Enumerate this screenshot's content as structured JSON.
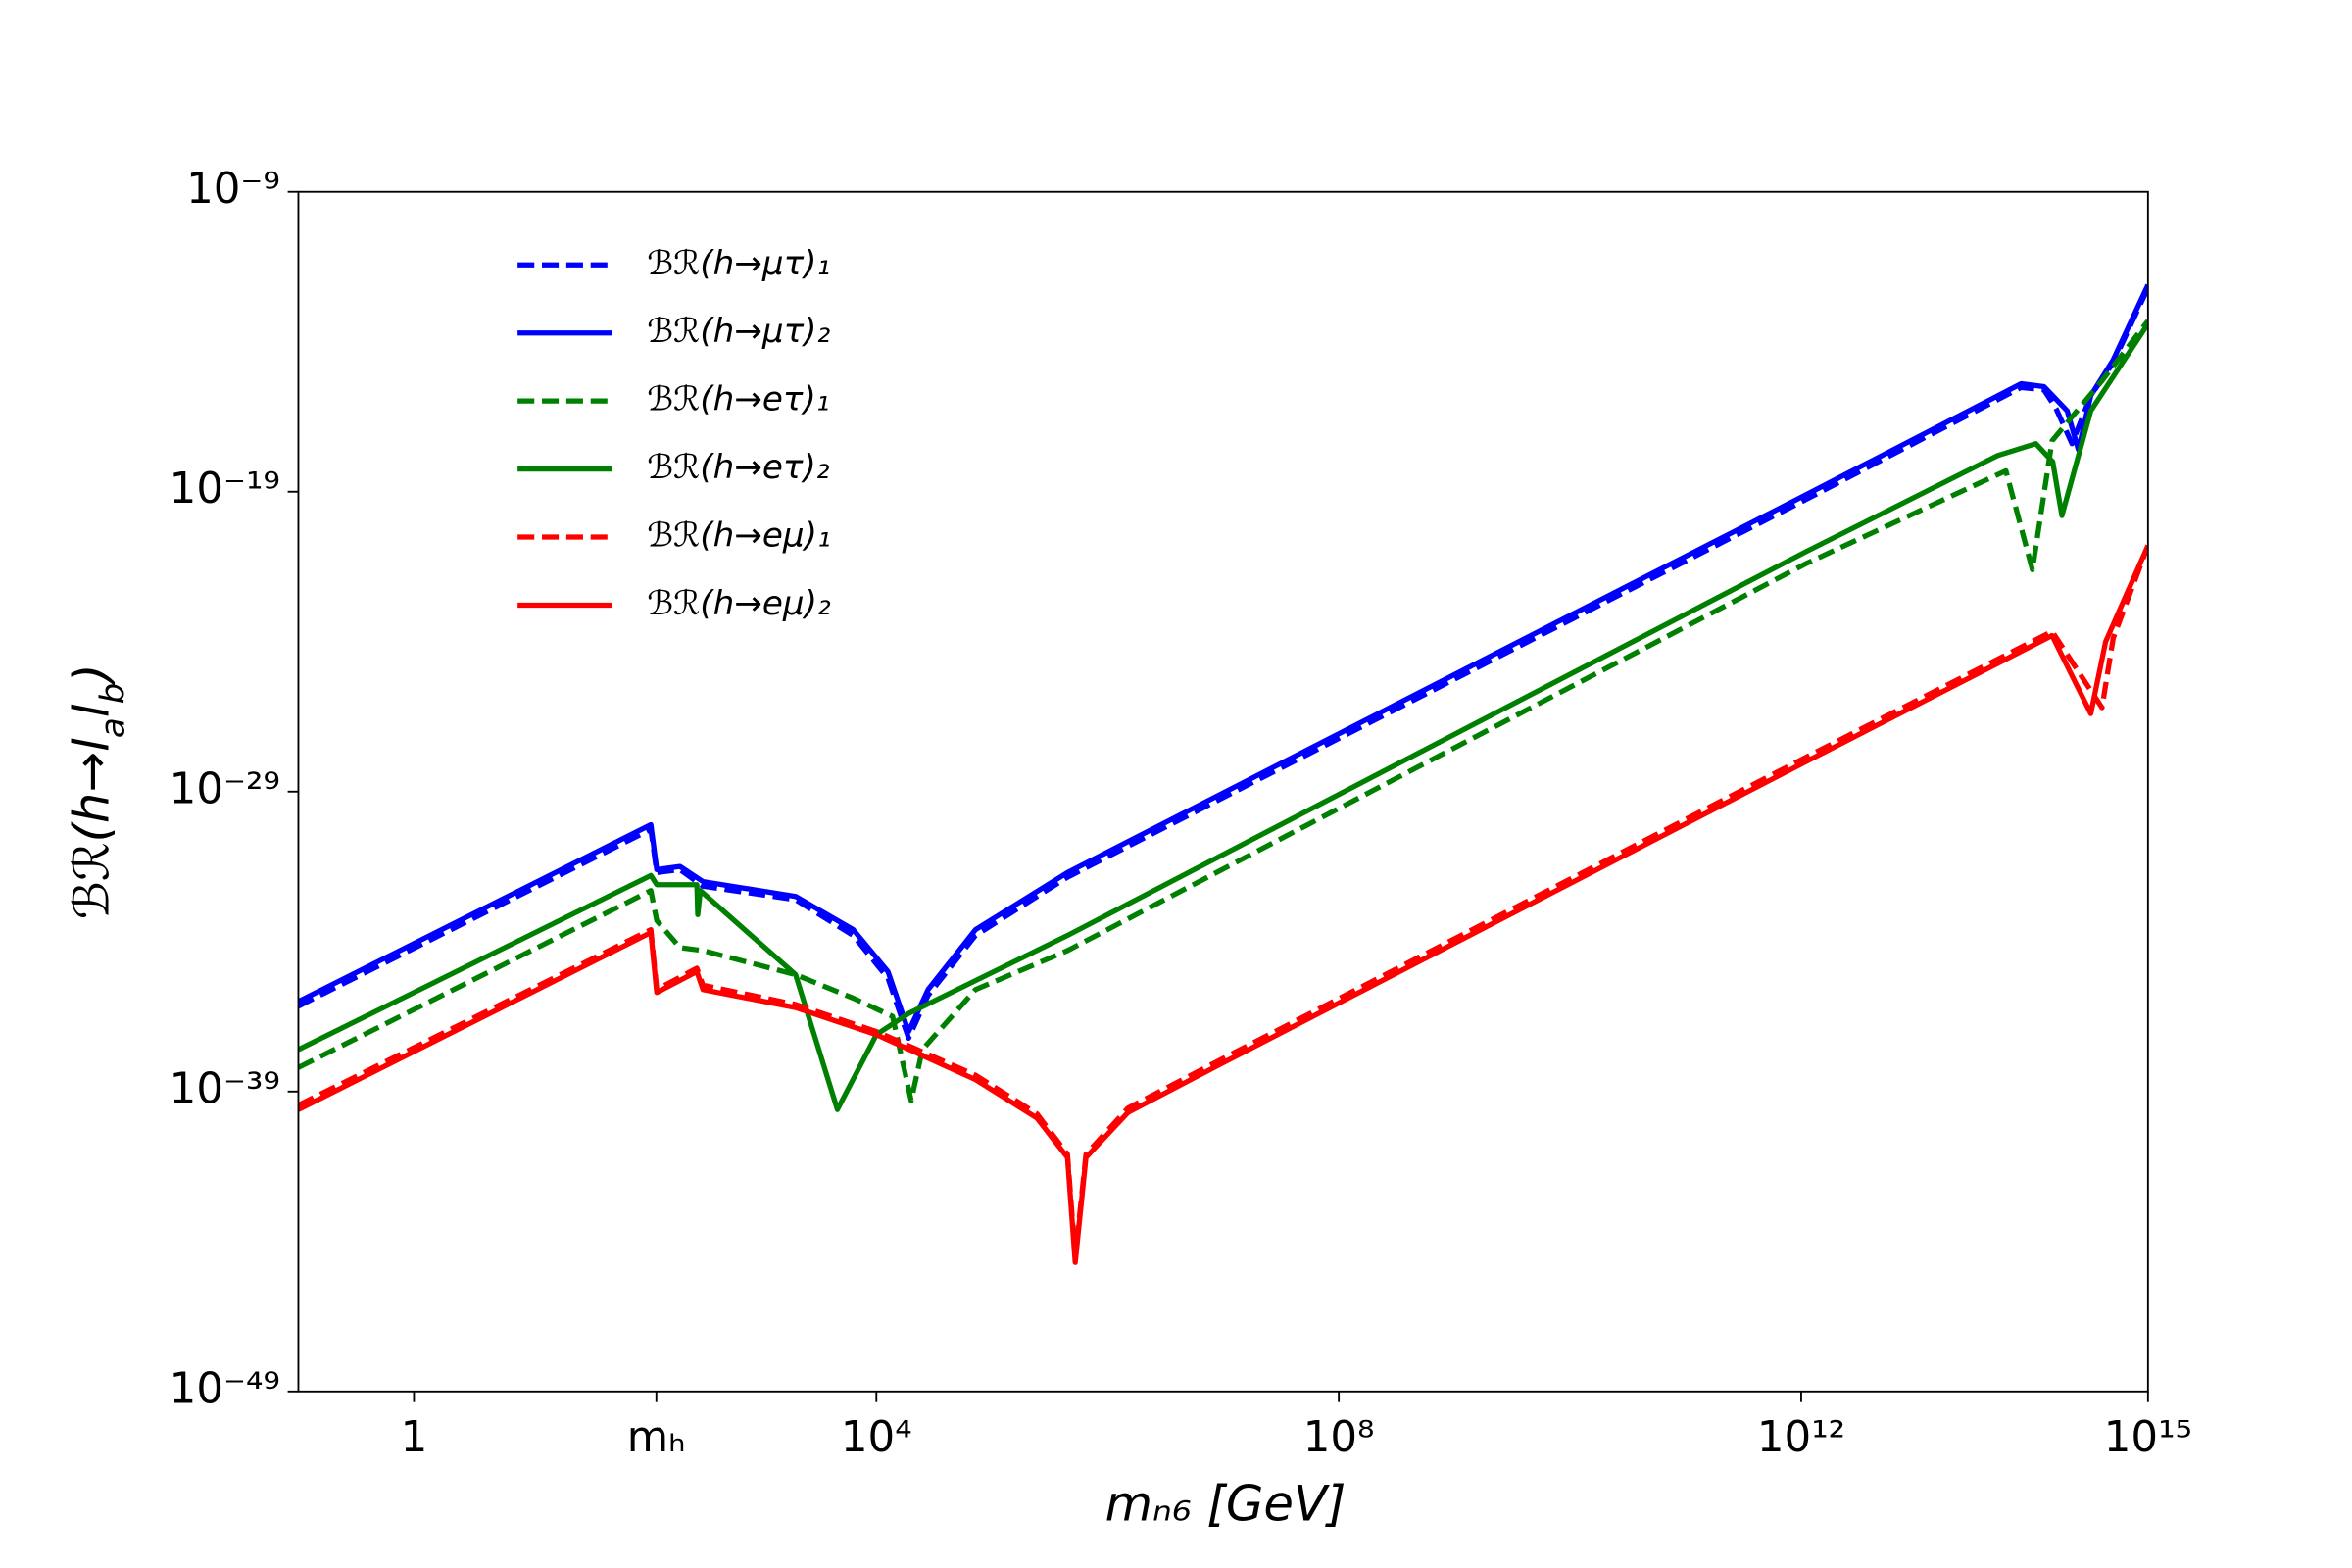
{
  "chart_data": {
    "type": "line",
    "xscale": "log",
    "yscale": "log",
    "xlim": [
      0.1,
      1000000000000000.0
    ],
    "ylim": [
      1e-49,
      1e-09
    ],
    "xticks": [
      1,
      {
        "value": 125,
        "label": "mₕ"
      },
      {
        "value": 10000,
        "label": "10⁴"
      },
      {
        "value": 100000000.0,
        "label": "10⁸"
      },
      {
        "value": 1000000000000.0,
        "label": "10¹²"
      },
      {
        "value": 1000000000000000.0,
        "label": "10¹⁵"
      }
    ],
    "yticks": [
      {
        "value": 1e-09,
        "label": "10⁻⁹"
      },
      {
        "value": 1e-19,
        "label": "10⁻¹⁹"
      },
      {
        "value": 1e-29,
        "label": "10⁻²⁹"
      },
      {
        "value": 1e-39,
        "label": "10⁻³⁹"
      },
      {
        "value": 1e-49,
        "label": "10⁻⁴⁹"
      }
    ],
    "xlabel": "mₙ₆ [GeV]",
    "ylabel": [
      {
        "text": "ℬℛ(h→l"
      },
      {
        "text": "a",
        "sub": true
      },
      {
        "text": "l"
      },
      {
        "text": "b",
        "sub": true
      },
      {
        "text": ")"
      }
    ],
    "legend": "upper left",
    "series": [
      {
        "name": "ℬℛ(h→μτ)₁",
        "color": "#0000ff",
        "linestyle": "dashed",
        "x": [
          0.1,
          112,
          126,
          200,
          316,
          2000,
          6300,
          12600,
          19000,
          28000,
          72000,
          450000,
          1100000000000.0,
          80000000000000.0,
          126000000000000.0,
          160000000000000.0,
          220000000000000.0,
          320000000000000.0,
          500000000000000.0,
          1000000000000000.0
        ],
        "values": [
          7e-37,
          5.5e-31,
          2e-32,
          2.5e-32,
          7e-33,
          2.5e-33,
          1.6e-34,
          6e-36,
          6e-38,
          1.6e-36,
          1.6e-34,
          1.4e-32,
          5.5e-20,
          3e-16,
          2.5e-16,
          6e-17,
          4e-18,
          1.6e-16,
          2e-15,
          6.3e-13
        ]
      },
      {
        "name": "ℬℛ(h→μτ)₂",
        "color": "#0000ff",
        "linestyle": "solid",
        "x": [
          0.1,
          112,
          126,
          200,
          316,
          2000,
          6300,
          12600,
          19000,
          28000,
          72000,
          450000,
          1100000000000.0,
          80000000000000.0,
          126000000000000.0,
          200000000000000.0,
          250000000000000.0,
          320000000000000.0,
          500000000000000.0,
          1000000000000000.0
        ],
        "values": [
          1e-36,
          7.9e-31,
          2.5e-32,
          3.2e-32,
          1e-32,
          3.2e-33,
          2.5e-34,
          1e-35,
          1e-37,
          2.5e-36,
          2.5e-34,
          2e-32,
          7.9e-20,
          4e-16,
          3.2e-16,
          5e-17,
          2.5e-18,
          1.6e-16,
          2.5e-15,
          7.9e-13
        ]
      },
      {
        "name": "ℬℛ(h→eτ)₁",
        "color": "#008000",
        "linestyle": "dashed",
        "x": [
          0.1,
          112,
          126,
          200,
          316,
          2000,
          6300,
          13800,
          20000,
          25000,
          72000,
          450000,
          1100000000000.0,
          59000000000000.0,
          100000000000000.0,
          148000000000000.0,
          400000000000000.0,
          1000000000000000.0
        ],
        "values": [
          6.3e-39,
          5e-33,
          5e-34,
          6.3e-35,
          5e-35,
          7.9e-36,
          1.3e-36,
          3.2e-37,
          5e-40,
          2.5e-38,
          2.5e-36,
          5e-35,
          4e-22,
          5e-19,
          2.5e-22,
          5e-18,
          5e-16,
          5e-14
        ]
      },
      {
        "name": "ℬℛ(h→eτ)₂",
        "color": "#008000",
        "linestyle": "solid",
        "x": [
          0.1,
          112,
          126,
          280,
          285,
          300,
          2000,
          4600,
          10000,
          19000,
          450000,
          1100000000000.0,
          50000000000000.0,
          107000000000000.0,
          150000000000000.0,
          180000000000000.0,
          320000000000000.0,
          1000000000000000.0
        ],
        "values": [
          2.5e-38,
          1.6e-32,
          7.9e-33,
          7.9e-33,
          7.9e-34,
          5e-33,
          7.9e-36,
          2.5e-40,
          7.9e-38,
          4e-37,
          1.6e-34,
          1e-21,
          1.6e-18,
          4e-18,
          1e-18,
          1.6e-20,
          5e-17,
          4e-14
        ]
      },
      {
        "name": "ℬℛ(h→eμ)₁",
        "color": "#ff0000",
        "linestyle": "dashed",
        "x": [
          0.1,
          112,
          126,
          280,
          316,
          2000,
          10000,
          72000,
          245000,
          450000,
          525000,
          650000,
          1500000.0,
          9300000.0,
          1100000000000.0,
          148000000000000.0,
          400000000000000.0,
          500000000000000.0,
          1000000000000000.0
        ],
        "values": [
          3.5e-40,
          2.5e-34,
          2.5e-36,
          1.3e-35,
          3.5e-36,
          8e-37,
          1e-37,
          3.5e-39,
          1.8e-40,
          8e-42,
          3e-45,
          8e-42,
          2.8e-40,
          1.1e-38,
          1.4e-28,
          2.2e-24,
          6.3e-27,
          1.3e-24,
          1.6e-21
        ]
      },
      {
        "name": "ℬℛ(h→eμ)₂",
        "color": "#ff0000",
        "linestyle": "solid",
        "x": [
          0.1,
          112,
          126,
          280,
          316,
          2000,
          10000,
          72000,
          245000,
          450000,
          525000,
          650000,
          1500000.0,
          9300000.0,
          1100000000000.0,
          148000000000000.0,
          320000000000000.0,
          430000000000000.0,
          1000000000000000.0
        ],
        "values": [
          2.5e-40,
          2e-34,
          2e-36,
          1e-35,
          2.5e-36,
          6.3e-37,
          7.9e-38,
          2.5e-39,
          1.3e-40,
          6.3e-42,
          2e-45,
          6.3e-42,
          2e-40,
          7.9e-39,
          1e-28,
          1.6e-24,
          4e-27,
          1e-24,
          1.6e-21
        ]
      }
    ]
  }
}
